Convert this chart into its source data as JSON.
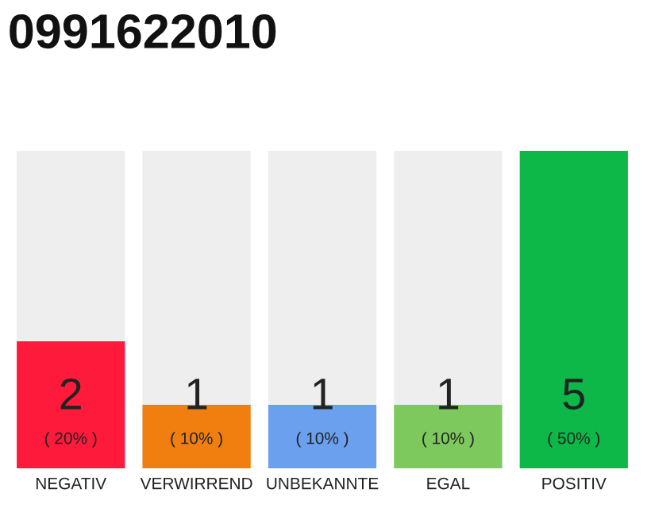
{
  "chart_data": {
    "type": "bar",
    "title": "0991622010",
    "categories": [
      "NEGATIV",
      "VERWIRREND",
      "UNBEKANNTE",
      "EGAL",
      "POSITIV"
    ],
    "values": [
      2,
      1,
      1,
      1,
      5
    ],
    "colors": [
      "#fe1a3b",
      "#f07f10",
      "#6aa0ee",
      "#7dc95e",
      "#0db748"
    ],
    "data_labels": true,
    "annotations": [
      {
        "text": "( 20% )",
        "x": "NEGATIV",
        "y": 0
      },
      {
        "text": "( 10% )",
        "x": "VERWIRREND",
        "y": 0
      },
      {
        "text": "( 10% )",
        "x": "UNBEKANNTE",
        "y": 0
      },
      {
        "text": "( 10% )",
        "x": "EGAL",
        "y": 0
      },
      {
        "text": "( 50% )",
        "x": "POSITIV",
        "y": 0
      }
    ],
    "grid": false,
    "legend": false
  }
}
